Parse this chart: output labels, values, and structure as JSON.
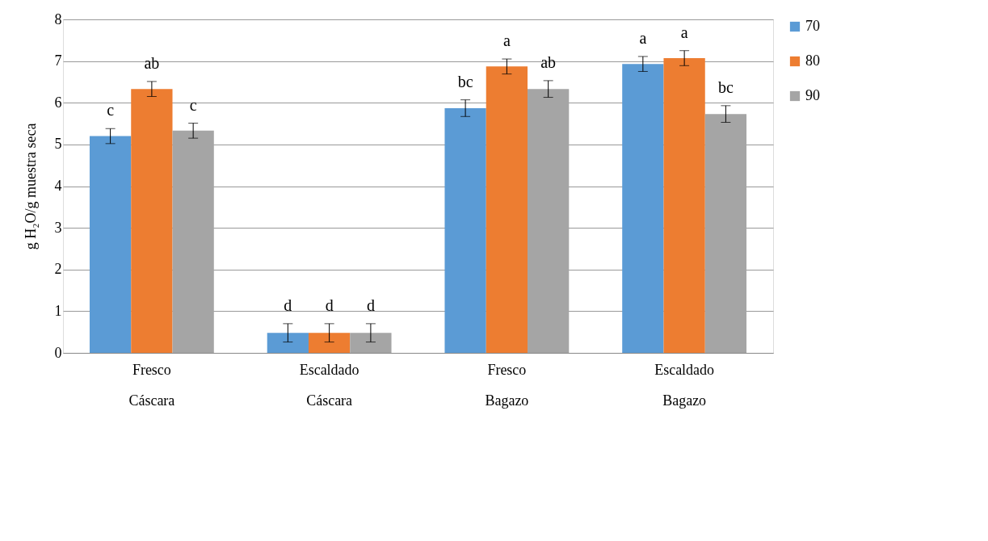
{
  "chart_data": {
    "type": "bar",
    "ylabel": "g H₂O/g muestra seca",
    "categories": [
      "Fresco\nCáscara",
      "Escaldado\nCáscara",
      "Fresco\nBagazo",
      "Escaldado\nBagazo"
    ],
    "series": [
      {
        "name": "70",
        "color": "#5b9bd5",
        "values": [
          5.2,
          0.48,
          5.87,
          6.93
        ],
        "errors": [
          0.18,
          0.22,
          0.2,
          0.18
        ],
        "value_labels": [
          "c",
          "d",
          "bc",
          "a"
        ]
      },
      {
        "name": "80",
        "color": "#ed7d31",
        "values": [
          6.33,
          0.48,
          6.87,
          7.07
        ],
        "errors": [
          0.18,
          0.22,
          0.18,
          0.18
        ],
        "value_labels": [
          "ab",
          "d",
          "a",
          "a"
        ]
      },
      {
        "name": "90",
        "color": "#a5a5a5",
        "values": [
          5.33,
          0.48,
          6.33,
          5.73
        ],
        "errors": [
          0.18,
          0.22,
          0.2,
          0.2
        ],
        "value_labels": [
          "c",
          "d",
          "ab",
          "bc"
        ]
      }
    ],
    "ylim": [
      0,
      8
    ],
    "yticks": [
      0,
      1,
      2,
      3,
      4,
      5,
      6,
      7,
      8
    ],
    "grid": "y",
    "legend": "right"
  }
}
